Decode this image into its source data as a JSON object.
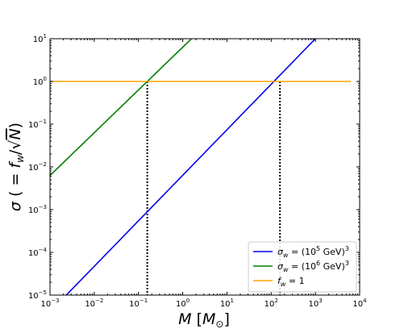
{
  "chart_data": {
    "type": "line",
    "xscale": "log",
    "yscale": "log",
    "xlim": [
      0.001,
      10000
    ],
    "ylim": [
      1e-05,
      10
    ],
    "x_ticks": [
      {
        "value": 0.001,
        "mant": "10",
        "exp": "−3"
      },
      {
        "value": 0.01,
        "mant": "10",
        "exp": "−2"
      },
      {
        "value": 0.1,
        "mant": "10",
        "exp": "−1"
      },
      {
        "value": 1,
        "mant": "10",
        "exp": "0"
      },
      {
        "value": 10,
        "mant": "10",
        "exp": "1"
      },
      {
        "value": 100,
        "mant": "10",
        "exp": "2"
      },
      {
        "value": 1000,
        "mant": "10",
        "exp": "3"
      },
      {
        "value": 10000,
        "mant": "10",
        "exp": "4"
      }
    ],
    "y_ticks": [
      {
        "value": 1e-05,
        "mant": "10",
        "exp": "−5"
      },
      {
        "value": 0.0001,
        "mant": "10",
        "exp": "−4"
      },
      {
        "value": 0.001,
        "mant": "10",
        "exp": "−3"
      },
      {
        "value": 0.01,
        "mant": "10",
        "exp": "−2"
      },
      {
        "value": 0.1,
        "mant": "10",
        "exp": "−1"
      },
      {
        "value": 1,
        "mant": "10",
        "exp": "0"
      },
      {
        "value": 10,
        "mant": "10",
        "exp": "1"
      }
    ],
    "xlabel": {
      "main": "M",
      "open": " [",
      "sym": "M",
      "sub": "⊙",
      "close": "]"
    },
    "ylabel": {
      "sigma": "σ",
      "eq": " ( = ",
      "f": "f",
      "sub": "w",
      "slash": "/√",
      "n": "N",
      "close": ")"
    },
    "series": [
      {
        "name_parts": {
          "sym": "σ",
          "sub": "w",
          "rest": " = (10",
          "sup": "5",
          "unit": " GeV)",
          "sup2": "3"
        },
        "color": "#0000ee",
        "x": [
          0.00158,
          1000
        ],
        "y": [
          6.6e-06,
          10
        ]
      },
      {
        "name_parts": {
          "sym": "σ",
          "sub": "w",
          "rest": " = (10",
          "sup": "6",
          "unit": " GeV)",
          "sup2": "3"
        },
        "color": "#008000",
        "x": [
          0.001,
          1.58
        ],
        "y": [
          0.0063,
          10
        ]
      },
      {
        "name_parts": {
          "sym": "f",
          "sub": "w",
          "rest": " = 1",
          "sup": "",
          "unit": "",
          "sup2": ""
        },
        "color": "#ffa500",
        "x": [
          0.001,
          6300
        ],
        "y": [
          1,
          1
        ]
      }
    ],
    "vertical_markers": [
      {
        "x": 0.158,
        "y_top": 1,
        "color": "#000000",
        "style": "dotted"
      },
      {
        "x": 158,
        "y_top": 1,
        "color": "#000000",
        "style": "dotted"
      }
    ],
    "grid": false,
    "legend_placement": "lower-right"
  }
}
